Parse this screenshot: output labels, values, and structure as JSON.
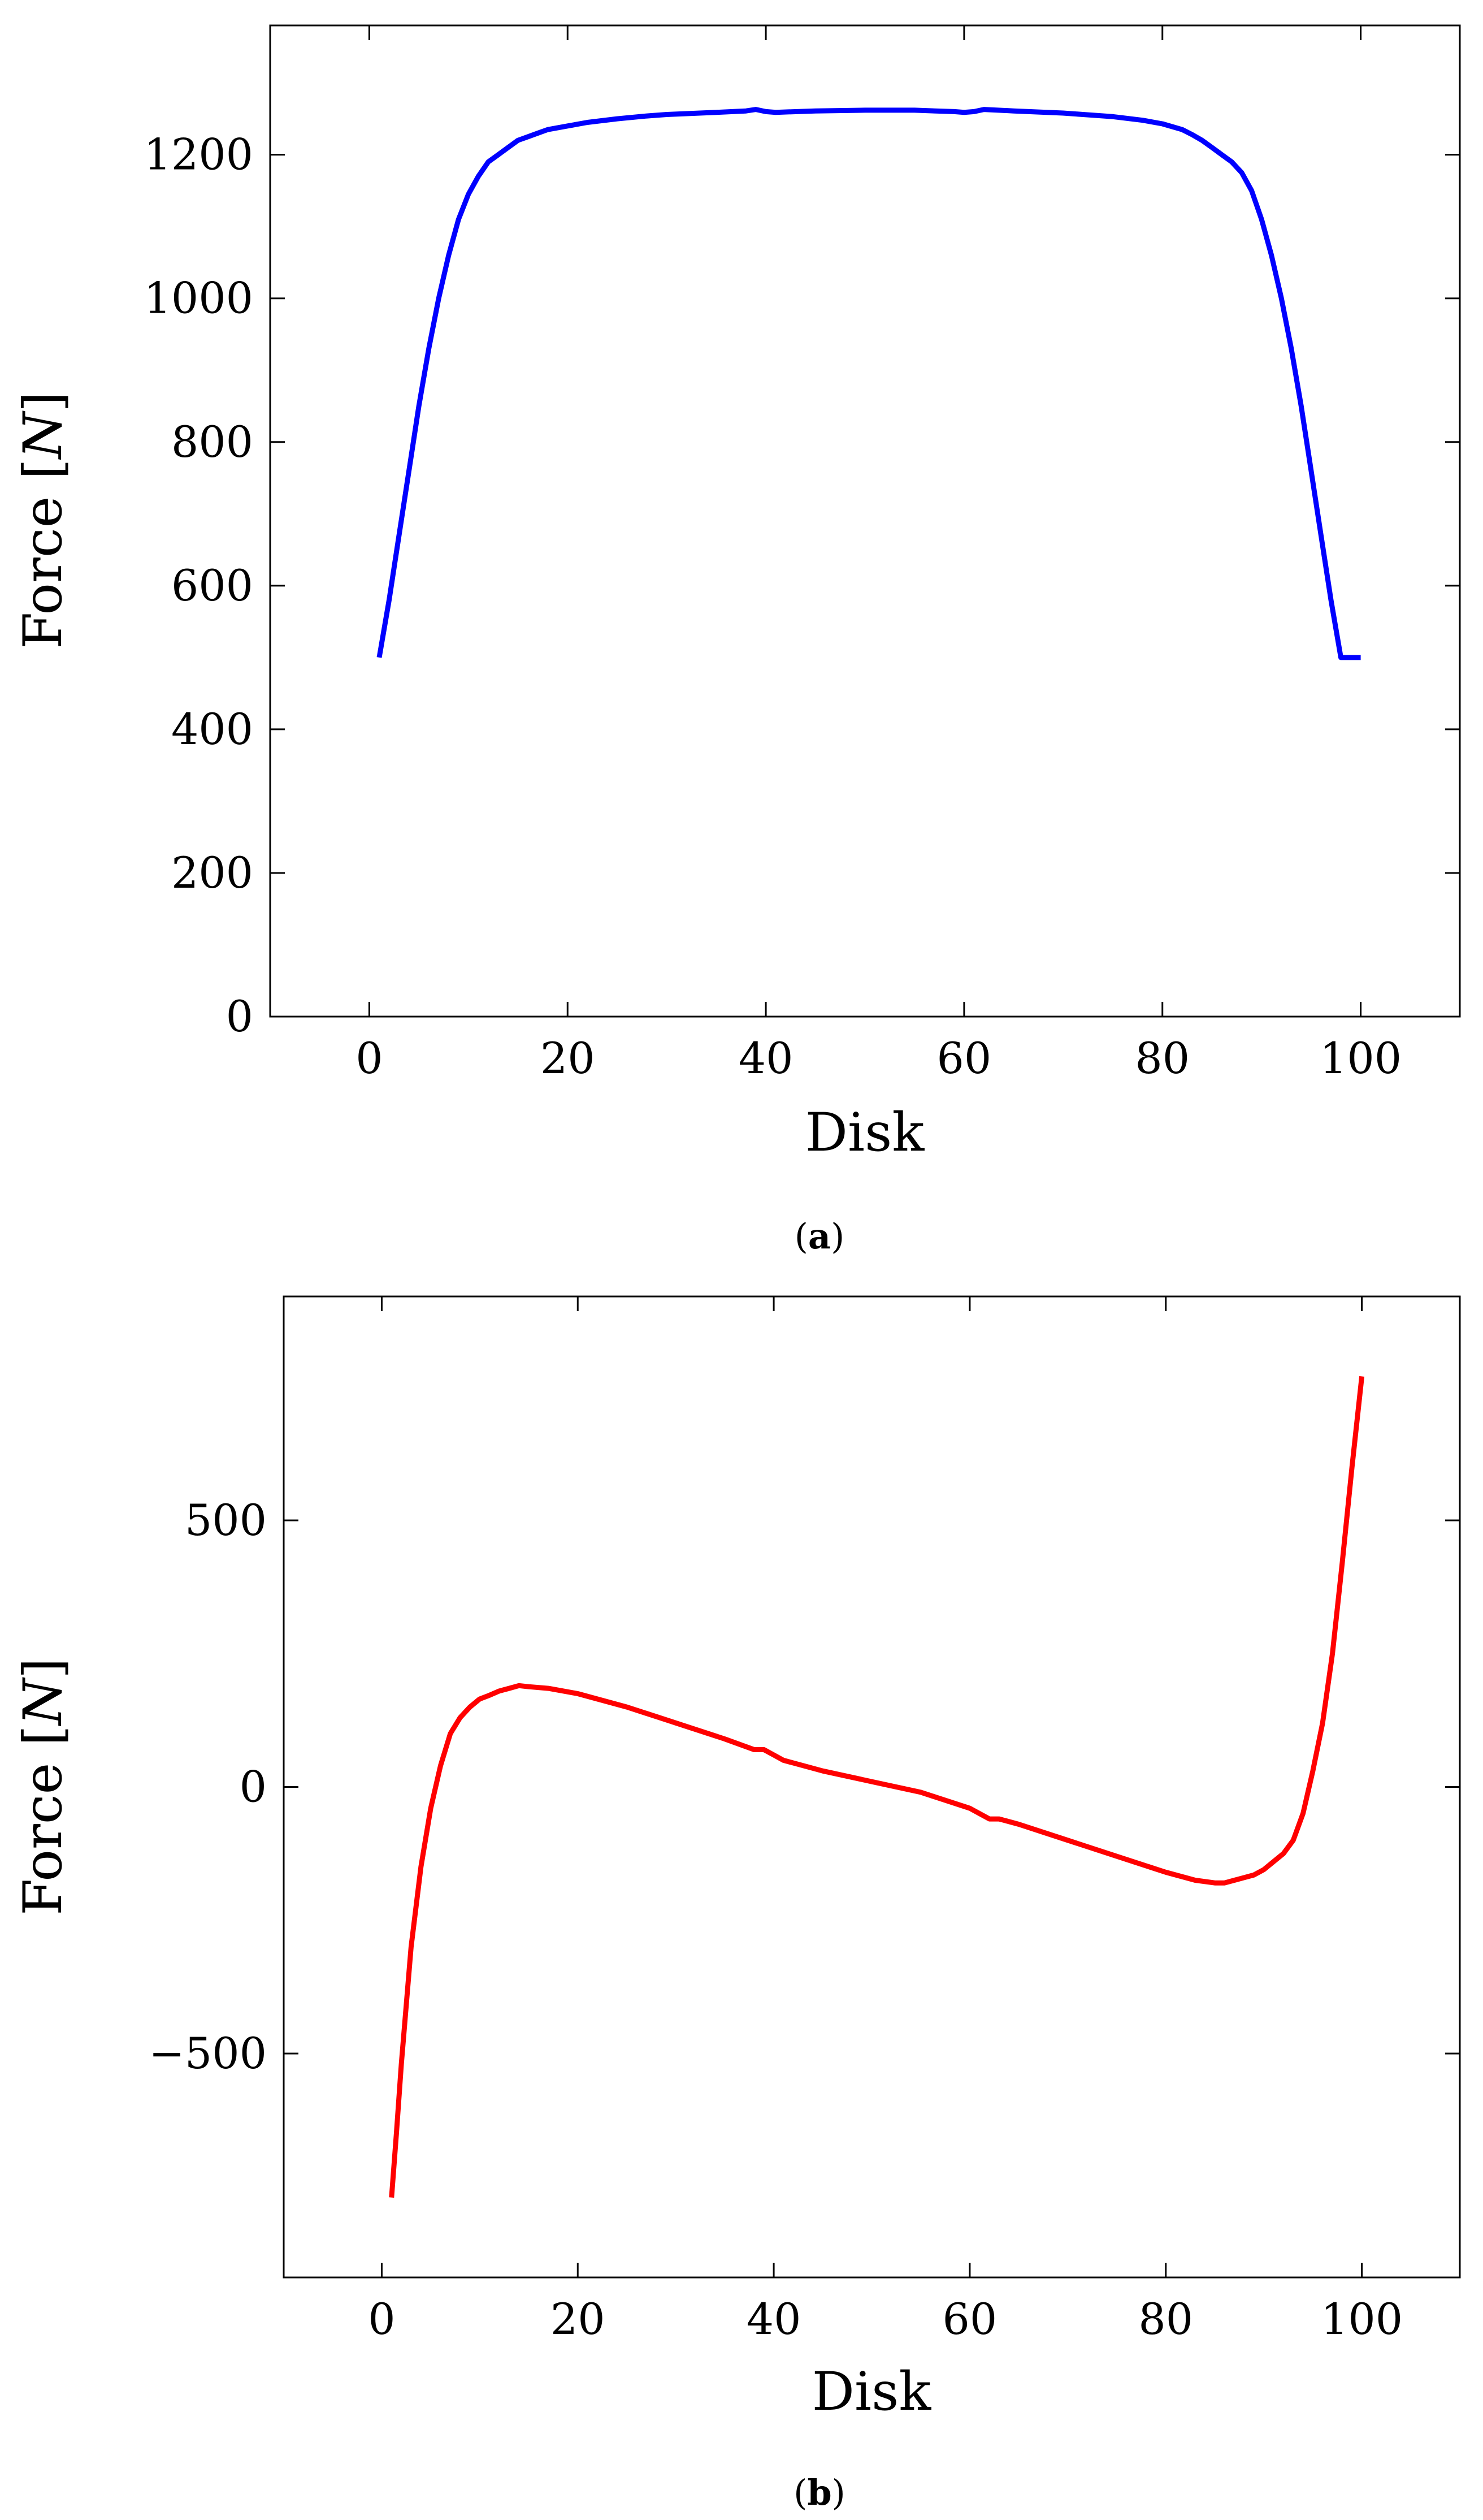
{
  "chart_data": [
    {
      "type": "line",
      "panel_label": "a",
      "xlabel": "Disk",
      "ylabel_text": "Force ",
      "ylabel_unit": "N",
      "xlim": [
        -10,
        110
      ],
      "ylim": [
        0,
        1380
      ],
      "xticks": [
        0,
        20,
        40,
        60,
        80,
        100
      ],
      "yticks": [
        0,
        200,
        400,
        600,
        800,
        1000,
        1200
      ],
      "ytick_labels": [
        "0",
        "200",
        "400",
        "600",
        "800",
        "1000",
        "1200"
      ],
      "grid": false,
      "series": [
        {
          "color": "#0000ff",
          "x": [
            1,
            2,
            3,
            4,
            5,
            6,
            7,
            8,
            9,
            10,
            11,
            12,
            13,
            14,
            15,
            16,
            17,
            18,
            20,
            22,
            25,
            28,
            30,
            35,
            38,
            39,
            40,
            41,
            45,
            50,
            55,
            59,
            60,
            61,
            62,
            65,
            70,
            72,
            75,
            78,
            80,
            82,
            83,
            84,
            85,
            86,
            87,
            88,
            89,
            90,
            91,
            92,
            93,
            94,
            95,
            96,
            97,
            98,
            99,
            100
          ],
          "y": [
            500,
            580,
            670,
            760,
            850,
            930,
            1000,
            1060,
            1110,
            1145,
            1170,
            1190,
            1200,
            1210,
            1220,
            1225,
            1230,
            1235,
            1240,
            1245,
            1250,
            1254,
            1256,
            1259,
            1261,
            1263,
            1260,
            1259,
            1261,
            1262,
            1262,
            1260,
            1259,
            1260,
            1263,
            1261,
            1258,
            1256,
            1253,
            1248,
            1243,
            1235,
            1228,
            1220,
            1210,
            1200,
            1190,
            1175,
            1150,
            1110,
            1060,
            1000,
            930,
            850,
            760,
            670,
            580,
            500,
            500,
            500
          ]
        }
      ]
    },
    {
      "type": "line",
      "panel_label": "b",
      "xlabel": "Disk",
      "ylabel_text": "Force ",
      "ylabel_unit": "N",
      "xlim": [
        -10,
        110
      ],
      "ylim": [
        -920,
        920
      ],
      "xticks": [
        0,
        20,
        40,
        60,
        80,
        100
      ],
      "yticks": [
        -500,
        0,
        500
      ],
      "ytick_labels": [
        "−500",
        "0",
        "500"
      ],
      "grid": false,
      "series": [
        {
          "color": "#ff0000",
          "x": [
            1,
            1.5,
            2,
            3,
            4,
            5,
            6,
            7,
            8,
            9,
            10,
            11,
            12,
            13,
            14,
            15,
            17,
            20,
            25,
            30,
            35,
            38,
            39,
            40,
            41,
            45,
            50,
            55,
            60,
            62,
            63,
            65,
            70,
            75,
            80,
            83,
            85,
            86,
            87,
            88,
            89,
            90,
            91,
            92,
            93,
            94,
            95,
            96,
            97,
            98,
            99,
            100
          ],
          "y": [
            -770,
            -650,
            -520,
            -300,
            -150,
            -40,
            40,
            100,
            130,
            150,
            165,
            172,
            180,
            185,
            190,
            188,
            185,
            175,
            150,
            120,
            90,
            70,
            70,
            60,
            50,
            30,
            10,
            -10,
            -40,
            -60,
            -60,
            -70,
            -100,
            -130,
            -160,
            -175,
            -180,
            -180,
            -175,
            -170,
            -165,
            -155,
            -140,
            -125,
            -100,
            -50,
            30,
            120,
            250,
            420,
            600,
            770
          ]
        }
      ]
    }
  ]
}
